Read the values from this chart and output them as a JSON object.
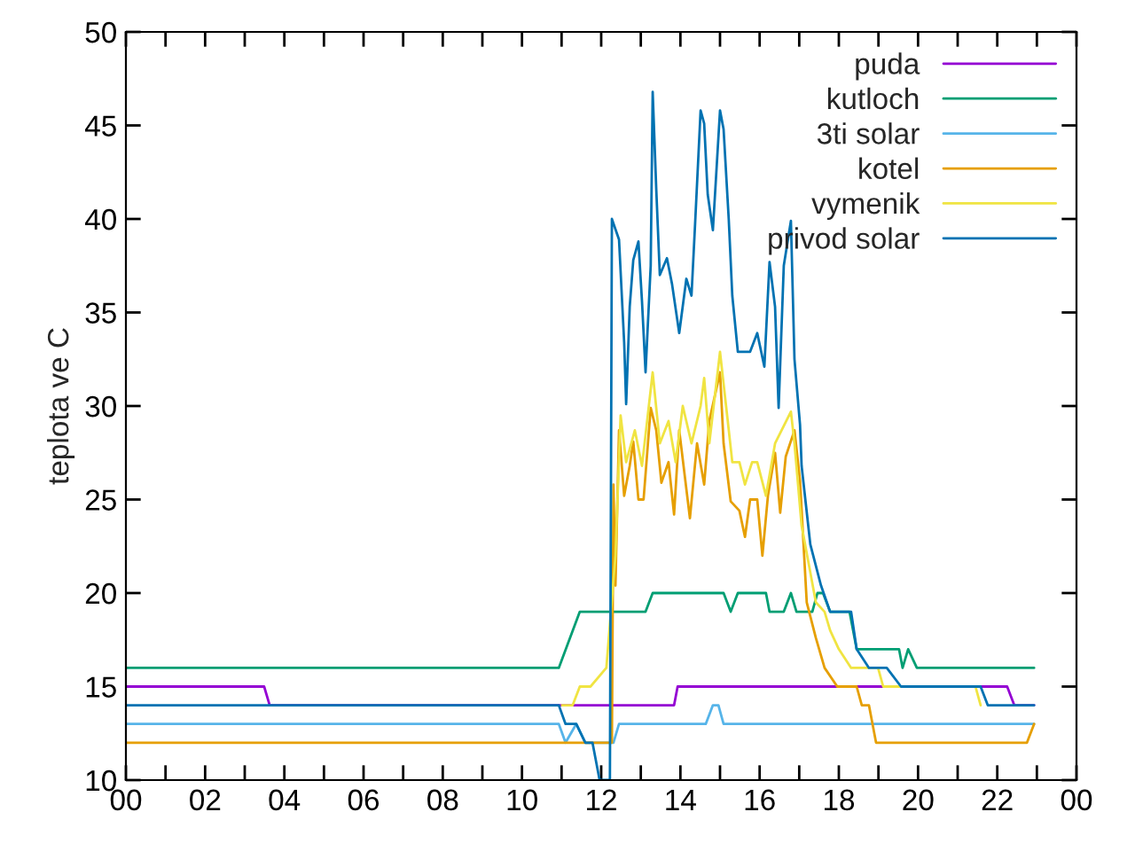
{
  "chart_data": {
    "type": "line",
    "ylabel": "teplota ve C",
    "xlim": [
      0,
      24
    ],
    "ylim": [
      10,
      50
    ],
    "xticks": [
      {
        "value": 0,
        "label": "00"
      },
      {
        "value": 1,
        "label": null
      },
      {
        "value": 2,
        "label": "02"
      },
      {
        "value": 3,
        "label": null
      },
      {
        "value": 4,
        "label": "04"
      },
      {
        "value": 5,
        "label": null
      },
      {
        "value": 6,
        "label": "06"
      },
      {
        "value": 7,
        "label": null
      },
      {
        "value": 8,
        "label": "08"
      },
      {
        "value": 9,
        "label": null
      },
      {
        "value": 10,
        "label": "10"
      },
      {
        "value": 11,
        "label": null
      },
      {
        "value": 12,
        "label": "12"
      },
      {
        "value": 13,
        "label": null
      },
      {
        "value": 14,
        "label": "14"
      },
      {
        "value": 15,
        "label": null
      },
      {
        "value": 16,
        "label": "16"
      },
      {
        "value": 17,
        "label": null
      },
      {
        "value": 18,
        "label": "18"
      },
      {
        "value": 19,
        "label": null
      },
      {
        "value": 20,
        "label": "20"
      },
      {
        "value": 21,
        "label": null
      },
      {
        "value": 22,
        "label": "22"
      },
      {
        "value": 23,
        "label": null
      },
      {
        "value": 24,
        "label": "00"
      }
    ],
    "yticks": [
      10,
      15,
      20,
      25,
      30,
      35,
      40,
      45,
      50
    ],
    "grid": false,
    "legend": "top right",
    "marker": "none",
    "line_style": "solid",
    "series": [
      {
        "name": "puda",
        "color": "#9400d3",
        "x": [
          0,
          3.49,
          3.63,
          13.84,
          13.93,
          22.25,
          22.43,
          22.93
        ],
        "values": [
          15,
          15,
          14,
          14,
          15,
          15,
          14,
          14
        ]
      },
      {
        "name": "kutloch",
        "color": "#009e73",
        "x": [
          0,
          10.93,
          11.46,
          13.12,
          13.3,
          15.09,
          15.27,
          15.45,
          16.16,
          16.25,
          16.61,
          16.79,
          16.93,
          17.33,
          17.46,
          17.6,
          17.78,
          18.27,
          18.45,
          19.52,
          19.61,
          19.75,
          19.97,
          22.93
        ],
        "values": [
          16,
          16,
          19,
          19,
          20,
          20,
          19,
          20,
          20,
          19,
          19,
          20,
          19,
          19,
          20,
          20,
          19,
          19,
          17,
          17,
          16,
          17,
          16,
          16
        ]
      },
      {
        "name": "3ti solar",
        "color": "#56b4e9",
        "x": [
          0,
          10.93,
          11.1,
          11.37,
          11.6,
          12.31,
          12.45,
          14.64,
          14.82,
          14.96,
          15.09,
          22.93
        ],
        "values": [
          13,
          13,
          12,
          13,
          12,
          12,
          13,
          13,
          14,
          14,
          13,
          13
        ]
      },
      {
        "name": "kotel",
        "color": "#e69f00",
        "x": [
          0,
          12.27,
          12.31,
          12.36,
          12.45,
          12.58,
          12.72,
          12.81,
          12.94,
          13.07,
          13.25,
          13.39,
          13.52,
          13.7,
          13.84,
          13.97,
          14.24,
          14.42,
          14.6,
          14.73,
          15.0,
          15.09,
          15.27,
          15.49,
          15.63,
          15.76,
          15.94,
          16.07,
          16.21,
          16.39,
          16.52,
          16.66,
          16.88,
          17.02,
          17.19,
          17.42,
          17.64,
          17.96,
          18.45,
          18.58,
          18.76,
          18.94,
          22.75,
          22.93
        ],
        "values": [
          12,
          12,
          25.8,
          20.4,
          28.7,
          25.2,
          26.8,
          28.1,
          25,
          25,
          29.9,
          28.7,
          25.9,
          27,
          24.2,
          28.7,
          24,
          28,
          25.8,
          29.2,
          31.8,
          28,
          24.9,
          24.4,
          23,
          25,
          25,
          22,
          25.2,
          27.5,
          24.3,
          27.3,
          28.7,
          26,
          19.5,
          17.6,
          16,
          15,
          15,
          14,
          14,
          12,
          12,
          13
        ]
      },
      {
        "name": "vymenik",
        "color": "#f0e442",
        "x": [
          11.01,
          11.28,
          11.46,
          11.73,
          12.13,
          12.36,
          12.49,
          12.63,
          12.85,
          13.03,
          13.3,
          13.48,
          13.7,
          13.88,
          14.06,
          14.28,
          14.51,
          14.6,
          14.73,
          15.0,
          15.18,
          15.31,
          15.49,
          15.63,
          15.81,
          15.94,
          16.16,
          16.39,
          16.79,
          16.88,
          17.06,
          17.28,
          17.42,
          17.64,
          17.78,
          18.0,
          18.31,
          18.99,
          19.12,
          21.45,
          21.58
        ],
        "values": [
          14,
          14,
          15,
          15,
          16,
          22,
          29.5,
          27,
          28.7,
          26.8,
          31.8,
          28,
          29.2,
          27,
          30,
          28,
          30,
          31.5,
          28,
          32.9,
          29.5,
          27,
          27,
          25.8,
          27,
          27,
          25.2,
          28,
          29.7,
          28,
          23.6,
          21.1,
          19.5,
          19,
          18,
          17,
          16,
          16,
          15,
          15,
          14
        ]
      },
      {
        "name": "privod solar",
        "color": "#0072b2",
        "x": [
          0,
          10.93,
          11.1,
          11.37,
          11.6,
          11.78,
          11.96,
          12.22,
          12.27,
          12.45,
          12.58,
          12.63,
          12.72,
          12.81,
          12.94,
          13.03,
          13.12,
          13.25,
          13.3,
          13.39,
          13.48,
          13.66,
          13.79,
          13.97,
          14.15,
          14.28,
          14.37,
          14.51,
          14.6,
          14.69,
          14.82,
          15.0,
          15.09,
          15.22,
          15.31,
          15.45,
          15.76,
          15.94,
          16.12,
          16.25,
          16.39,
          16.48,
          16.61,
          16.79,
          16.88,
          17.02,
          17.06,
          17.28,
          17.55,
          17.78,
          18.31,
          18.45,
          18.76,
          19.21,
          19.57,
          21.58,
          21.76,
          22.93
        ],
        "values": [
          14,
          14,
          13,
          13,
          12,
          12,
          10,
          10,
          40,
          38.9,
          33.4,
          30.1,
          35.3,
          37.8,
          38.8,
          35.6,
          31.8,
          37.5,
          46.8,
          41.6,
          37,
          37.9,
          36.5,
          33.9,
          36.8,
          35.9,
          39.7,
          45.8,
          45.1,
          41.3,
          39.4,
          45.8,
          44.8,
          40,
          35.9,
          32.9,
          32.9,
          33.9,
          32.1,
          37.7,
          35.3,
          29.9,
          37.5,
          39.9,
          32.5,
          29,
          26.8,
          22.6,
          20.4,
          19,
          19,
          17,
          16,
          16,
          15,
          15,
          14,
          14
        ]
      }
    ]
  }
}
